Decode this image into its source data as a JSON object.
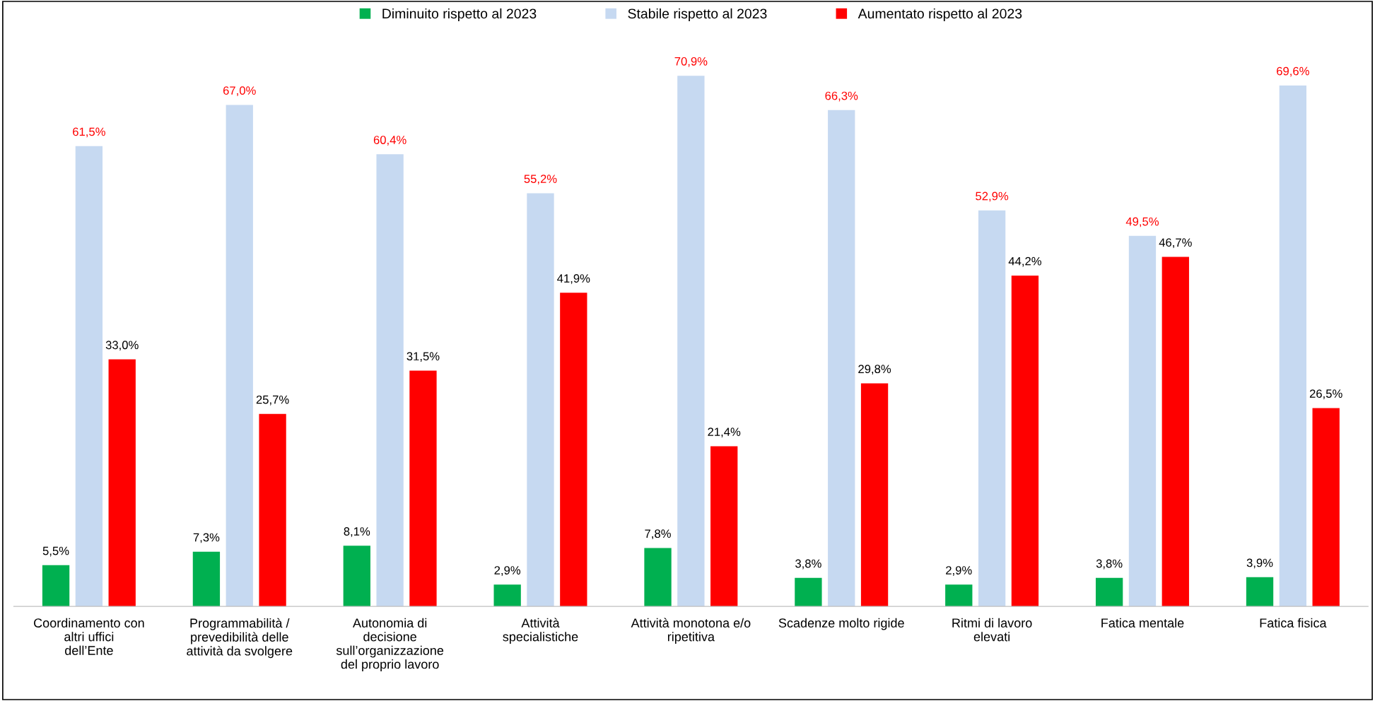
{
  "chart_data": {
    "type": "bar",
    "categories": [
      "Coordinamento con altri uffici dell’Ente",
      "Programmabilità / prevedibilità delle attività da svolgere",
      "Autonomia di decisione sull’organizzazione del proprio lavoro",
      "Attività specialistiche",
      "Attività monotona e/o ripetitiva",
      "Scadenze molto rigide",
      "Ritmi di lavoro elevati",
      "Fatica mentale",
      "Fatica fisica"
    ],
    "series": [
      {
        "name": "Diminuito rispetto al 2023",
        "color": "#00b050",
        "values": [
          5.5,
          7.3,
          8.1,
          2.9,
          7.8,
          3.8,
          2.9,
          3.8,
          3.9
        ],
        "value_labels": [
          "5,5%",
          "7,3%",
          "8,1%",
          "2,9%",
          "7,8%",
          "3,8%",
          "2,9%",
          "3,8%",
          "3,9%"
        ]
      },
      {
        "name": "Stabile rispetto al 2023",
        "color": "#c6d9f1",
        "values": [
          61.5,
          67.0,
          60.4,
          55.2,
          70.9,
          66.3,
          52.9,
          49.5,
          69.6
        ],
        "value_labels": [
          "61,5%",
          "67,0%",
          "60,4%",
          "55,2%",
          "70,9%",
          "66,3%",
          "52,9%",
          "49,5%",
          "69,6%"
        ]
      },
      {
        "name": "Aumentato rispetto al 2023",
        "color": "#ff0000",
        "values": [
          33.0,
          25.7,
          31.5,
          41.9,
          21.4,
          29.8,
          44.2,
          46.7,
          26.5
        ],
        "value_labels": [
          "33,0%",
          "25,7%",
          "31,5%",
          "41,9%",
          "21,4%",
          "29,8%",
          "44,2%",
          "46,7%",
          "26,5%"
        ]
      }
    ],
    "legend": "top",
    "grid": false,
    "tick_labels": "x"
  }
}
